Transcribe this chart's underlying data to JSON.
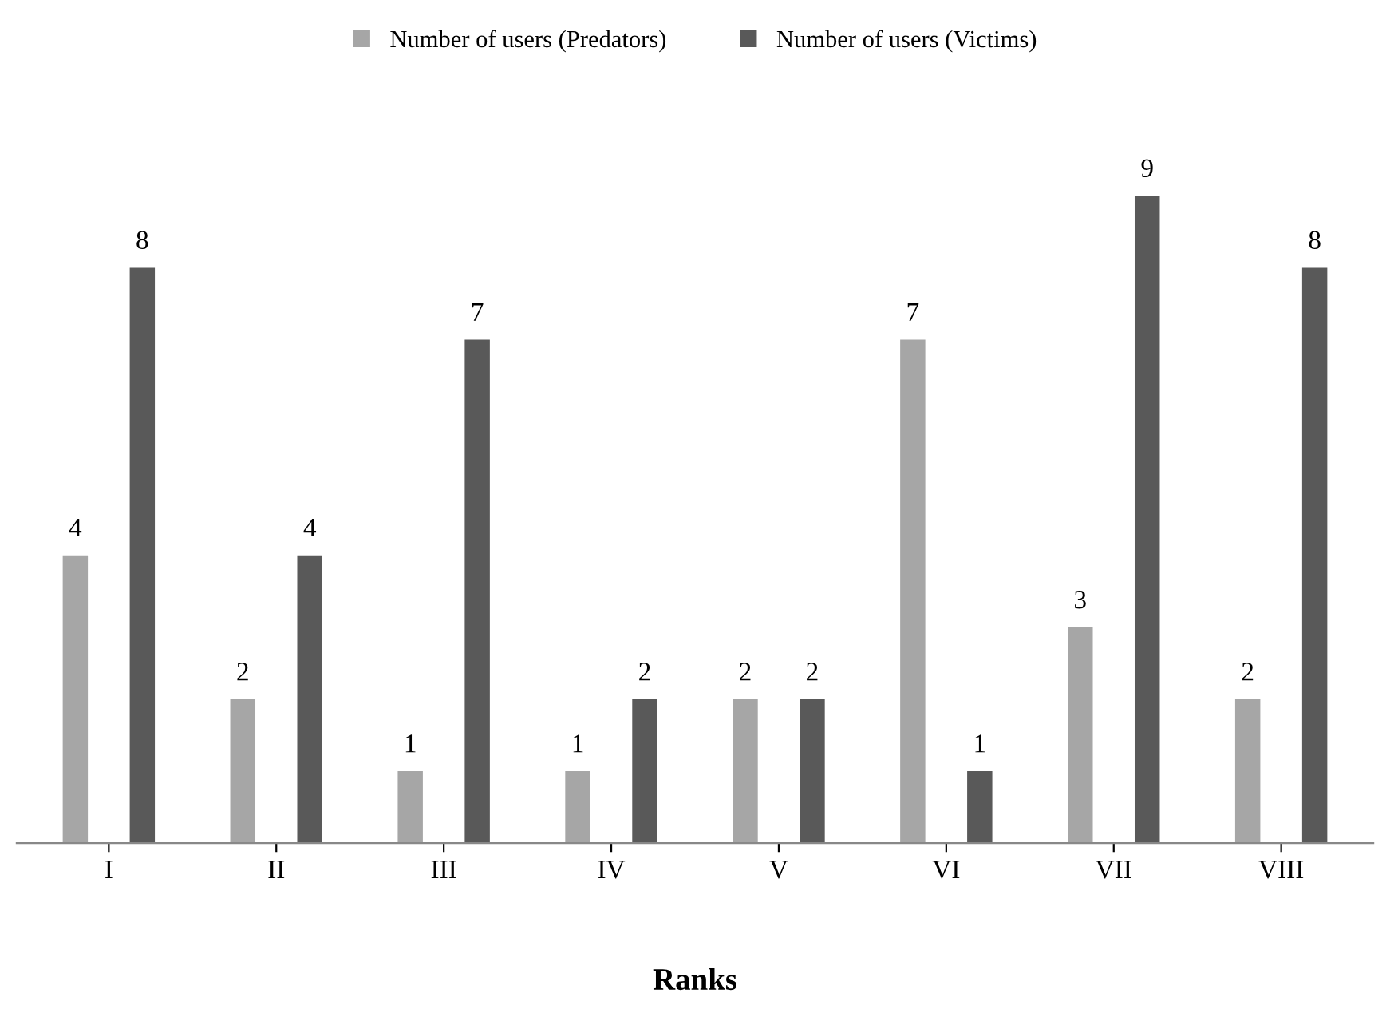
{
  "chart_data": {
    "type": "bar",
    "xlabel": "Ranks",
    "categories": [
      "I",
      "II",
      "III",
      "IV",
      "V",
      "VI",
      "VII",
      "VIII"
    ],
    "series": [
      {
        "name": "Number of users (Predators)",
        "color": "#a6a6a6",
        "values": [
          4,
          2,
          1,
          1,
          2,
          7,
          3,
          2
        ]
      },
      {
        "name": "Number of users (Victims)",
        "color": "#595959",
        "values": [
          8,
          4,
          7,
          2,
          2,
          1,
          9,
          8
        ]
      }
    ],
    "data_labels": true,
    "legend": "top",
    "grid": false,
    "tick_labels": "x"
  }
}
